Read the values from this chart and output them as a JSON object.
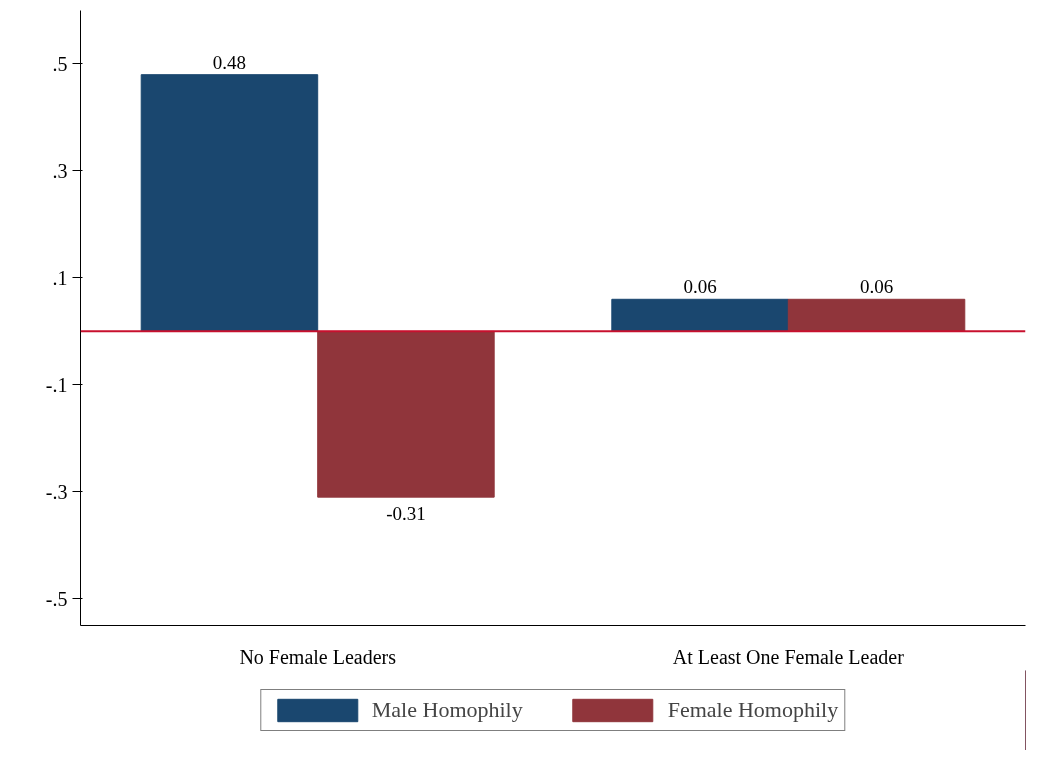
{
  "chart_data": {
    "type": "bar",
    "categories": [
      "No Female Leaders",
      "At Least One Female Leader"
    ],
    "series": [
      {
        "name": "Male Homophily",
        "color": "#1a476f",
        "values": [
          0.48,
          0.06
        ]
      },
      {
        "name": "Female Homophily",
        "color": "#90353b",
        "values": [
          -0.31,
          0.06
        ]
      }
    ],
    "ylim": [
      -0.55,
      0.6
    ],
    "yticks": [
      {
        "value": -0.5,
        "label": "-.5"
      },
      {
        "value": -0.3,
        "label": "-.3"
      },
      {
        "value": -0.1,
        "label": "-.1"
      },
      {
        "value": 0.1,
        "label": ".1"
      },
      {
        "value": 0.3,
        "label": ".3"
      },
      {
        "value": 0.5,
        "label": ".5"
      }
    ],
    "ref_lines": [
      {
        "axis": "y",
        "value": 0,
        "color": "#c8102e"
      }
    ],
    "data_labels": true,
    "grid": false,
    "legend": "bottom"
  }
}
